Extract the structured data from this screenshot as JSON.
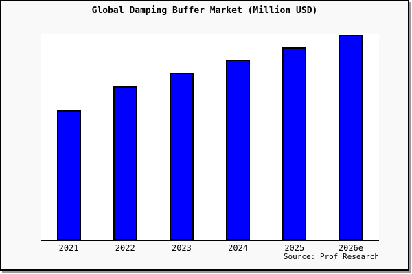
{
  "title": "Global Damping Buffer Market (Million USD)",
  "source_label": "Source: Prof Research",
  "colors": {
    "bar_fill": "#0000ff",
    "bar_border": "#000000",
    "canvas_background": "#f9f9f9",
    "plot_background": "#ffffff",
    "axis": "#000000",
    "frame_border": "#000000",
    "frame_shadow": "#9a9a9a"
  },
  "chart_data": {
    "type": "bar",
    "title": "Global Damping Buffer Market (Million USD)",
    "categories": [
      "2021",
      "2022",
      "2023",
      "2024",
      "2025",
      "2026e"
    ],
    "values": [
      63.3,
      75.0,
      81.7,
      88.0,
      94.0,
      100.0
    ],
    "xlabel": "",
    "ylabel": "",
    "ylim": [
      0,
      100.3
    ],
    "y_axis_visible": false,
    "gridlines": false,
    "legend": false,
    "bar_color": "#0000ff",
    "bar_border_color": "#000000",
    "annotations": [
      "Source: Prof Research"
    ]
  }
}
